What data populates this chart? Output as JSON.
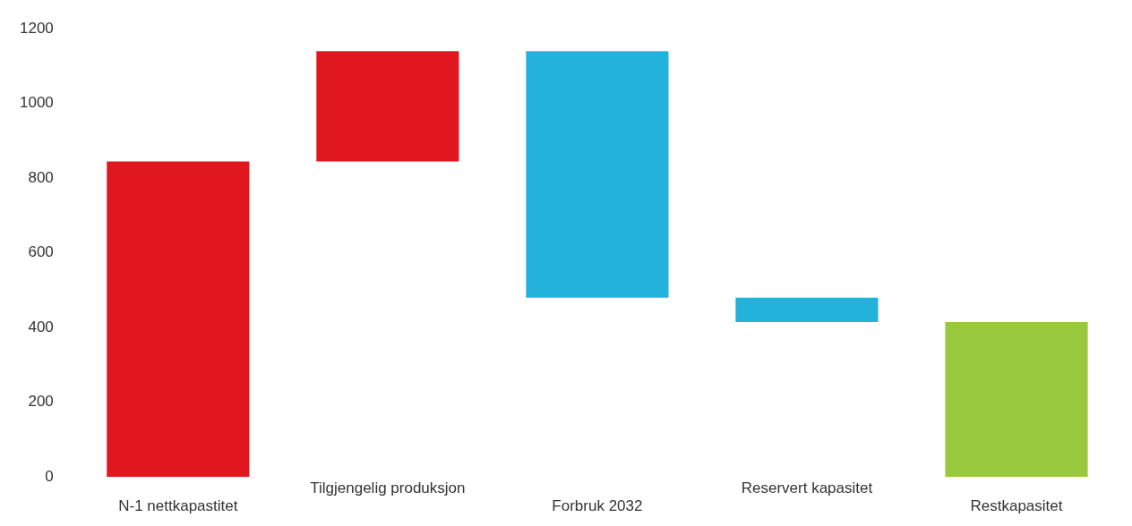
{
  "chart_data": {
    "type": "bar",
    "categories": [
      "N-1 nettkapastitet",
      "Tilgjengelig produksjon",
      "Forbruk 2032",
      "Reservert kapasitet",
      "Restkapasitet"
    ],
    "values": [
      845,
      295,
      -660,
      -65,
      415
    ],
    "base": [
      0,
      845,
      1140,
      480,
      0
    ],
    "colors": [
      "#e0171f",
      "#e0171f",
      "#22b2dc",
      "#22b2dc",
      "#98c83c"
    ],
    "ylim": [
      0,
      1200
    ],
    "yticks": [
      0,
      200,
      400,
      600,
      800,
      {
        "value": 1000,
        "label": "1000"
      },
      {
        "value": 1200,
        "label": "1200"
      }
    ],
    "grid": false,
    "legend": false
  }
}
